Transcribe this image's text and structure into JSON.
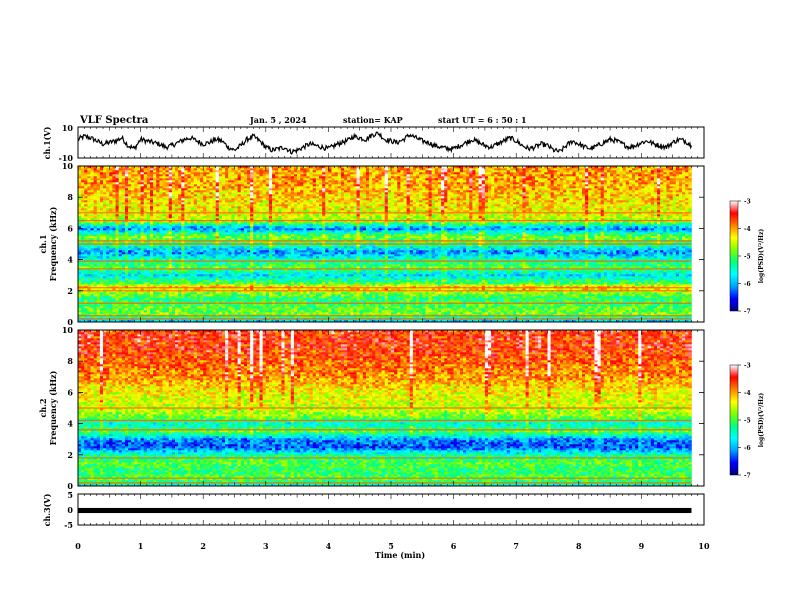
{
  "header": {
    "title": "VLF Spectra",
    "date": "Jan. 5 , 2024",
    "station": "station= KAP",
    "start_ut": "start UT =  6 : 50 : 1"
  },
  "chart_data": [
    {
      "panel": "ch1-waveform",
      "type": "line",
      "ylabel": "ch.1(V)",
      "ylim": [
        -10,
        10
      ],
      "yticks": [
        "10",
        "-10"
      ],
      "xlim": [
        0,
        10
      ],
      "color": "#000000",
      "x": [
        0,
        0.1,
        0.2,
        0.3,
        0.4,
        0.5,
        0.6,
        0.7,
        0.8,
        0.9,
        1.0,
        1.1,
        1.2,
        1.3,
        1.4,
        1.5,
        1.6,
        1.7,
        1.8,
        1.9,
        2.0,
        2.1,
        2.2,
        2.3,
        2.4,
        2.5,
        2.6,
        2.7,
        2.8,
        2.9,
        3.0,
        3.1,
        3.2,
        3.3,
        3.4,
        3.5,
        3.6,
        3.7,
        3.8,
        3.9,
        4.0,
        4.1,
        4.2,
        4.3,
        4.4,
        4.5,
        4.6,
        4.7,
        4.8,
        4.9,
        5.0,
        5.1,
        5.2,
        5.3,
        5.4,
        5.5,
        5.6,
        5.7,
        5.8,
        5.9,
        6.0,
        6.1,
        6.2,
        6.3,
        6.4,
        6.5,
        6.6,
        6.7,
        6.8,
        6.9,
        7.0,
        7.1,
        7.2,
        7.3,
        7.4,
        7.5,
        7.6,
        7.7,
        7.8,
        7.9,
        8.0,
        8.1,
        8.2,
        8.3,
        8.4,
        8.5,
        8.6,
        8.7,
        8.8,
        8.9,
        9.0,
        9.1,
        9.2,
        9.3,
        9.4,
        9.5,
        9.6,
        9.7,
        9.8
      ],
      "values": [
        2,
        4,
        3,
        1,
        -1,
        0,
        1,
        3,
        -2,
        -4,
        2,
        1,
        0,
        -1,
        -3,
        -2,
        0,
        2,
        3,
        1,
        -1,
        0,
        2,
        1,
        -3,
        -5,
        -2,
        2,
        4,
        1,
        -3,
        -5,
        -4,
        -3,
        -6,
        -5,
        -3,
        -1,
        -2,
        -3,
        -4,
        -2,
        0,
        1,
        4,
        3,
        2,
        5,
        6,
        2,
        1,
        0,
        2,
        5,
        3,
        1,
        0,
        -2,
        -3,
        -4,
        -4,
        -2,
        0,
        2,
        0,
        -2,
        -3,
        -1,
        1,
        3,
        1,
        -2,
        -4,
        -3,
        -1,
        -2,
        -5,
        -6,
        -2,
        1,
        -1,
        -3,
        -4,
        -2,
        0,
        2,
        1,
        -1,
        -3,
        -2,
        0,
        1,
        -1,
        -2,
        -3,
        0,
        2,
        1,
        -2
      ]
    },
    {
      "panel": "ch1-spectrogram",
      "type": "heatmap",
      "title": "",
      "xlabel": "",
      "ylabel": "ch.1\nFrequency (kHz)",
      "ylim": [
        0,
        10
      ],
      "xlim": [
        0,
        10.0
      ],
      "yticks": [
        "0",
        "2",
        "4",
        "6",
        "8",
        "10"
      ],
      "colorbar": {
        "label": "log(PSD)(V²/Hz)",
        "range": [
          -7,
          -3
        ],
        "ticks": [
          "-3",
          "-4",
          "-5",
          "-6",
          "-7"
        ],
        "colors": [
          "#000080",
          "#0000ff",
          "#00a0ff",
          "#00ffff",
          "#00ff80",
          "#80ff00",
          "#ffff00",
          "#ff8000",
          "#ff0000",
          "#ffffff"
        ]
      },
      "data_end_min": 9.8,
      "freq_profile": [
        {
          "f": 0.0,
          "v": -6.0
        },
        {
          "f": 0.5,
          "v": -4.8
        },
        {
          "f": 1.0,
          "v": -5.0
        },
        {
          "f": 1.5,
          "v": -5.2
        },
        {
          "f": 2.0,
          "v": -4.6
        },
        {
          "f": 2.2,
          "v": -4.0
        },
        {
          "f": 2.5,
          "v": -5.0
        },
        {
          "f": 3.0,
          "v": -5.8
        },
        {
          "f": 3.5,
          "v": -5.0
        },
        {
          "f": 4.0,
          "v": -5.4
        },
        {
          "f": 4.5,
          "v": -6.2
        },
        {
          "f": 5.0,
          "v": -5.2
        },
        {
          "f": 5.5,
          "v": -4.8
        },
        {
          "f": 6.0,
          "v": -6.2
        },
        {
          "f": 6.5,
          "v": -4.6
        },
        {
          "f": 7.0,
          "v": -4.4
        },
        {
          "f": 8.0,
          "v": -4.2
        },
        {
          "f": 9.0,
          "v": -4.0
        },
        {
          "f": 10.0,
          "v": -4.0
        }
      ],
      "lines_khz": [
        0.2,
        0.4,
        1.2,
        2.0,
        2.2,
        3.4,
        3.9,
        5.0,
        5.2,
        6.5,
        7.0
      ]
    },
    {
      "panel": "ch2-spectrogram",
      "type": "heatmap",
      "title": "",
      "xlabel": "",
      "ylabel": "ch.2\nFrequency (kHz)",
      "ylim": [
        0,
        10
      ],
      "xlim": [
        0,
        10.0
      ],
      "yticks": [
        "0",
        "2",
        "4",
        "6",
        "8",
        "10"
      ],
      "colorbar": {
        "label": "log(PSD)(V²/Hz)",
        "range": [
          -7,
          -3
        ],
        "ticks": [
          "-3",
          "-4",
          "-5",
          "-6",
          "-7"
        ],
        "colors": [
          "#000080",
          "#0000ff",
          "#00a0ff",
          "#00ffff",
          "#00ff80",
          "#80ff00",
          "#ffff00",
          "#ff8000",
          "#ff0000",
          "#ffffff"
        ]
      },
      "data_end_min": 9.8,
      "freq_profile": [
        {
          "f": 0.0,
          "v": -5.6
        },
        {
          "f": 0.5,
          "v": -5.0
        },
        {
          "f": 1.0,
          "v": -5.2
        },
        {
          "f": 1.5,
          "v": -5.0
        },
        {
          "f": 2.0,
          "v": -5.4
        },
        {
          "f": 2.5,
          "v": -6.4
        },
        {
          "f": 3.0,
          "v": -6.2
        },
        {
          "f": 3.5,
          "v": -5.0
        },
        {
          "f": 4.0,
          "v": -5.6
        },
        {
          "f": 4.5,
          "v": -4.8
        },
        {
          "f": 5.0,
          "v": -4.6
        },
        {
          "f": 6.0,
          "v": -4.4
        },
        {
          "f": 7.0,
          "v": -4.0
        },
        {
          "f": 8.0,
          "v": -3.8
        },
        {
          "f": 9.0,
          "v": -3.6
        },
        {
          "f": 10.0,
          "v": -3.6
        }
      ],
      "lines_khz": [
        0.2,
        0.5,
        1.8,
        3.6,
        4.2,
        5.0
      ]
    },
    {
      "panel": "ch3-waveform",
      "type": "line",
      "ylabel": "ch.3(V)",
      "ylim": [
        -5,
        5
      ],
      "yticks": [
        "5",
        "0",
        "-5"
      ],
      "xlim": [
        0,
        10
      ],
      "color": "#000000",
      "x": [
        0,
        9.8
      ],
      "values": [
        0,
        0
      ],
      "band_half_width_v": 0.5
    }
  ],
  "x_axis": {
    "label": "Time (min)",
    "ticks": [
      "0",
      "1",
      "2",
      "3",
      "4",
      "5",
      "6",
      "7",
      "8",
      "9",
      "10"
    ]
  }
}
